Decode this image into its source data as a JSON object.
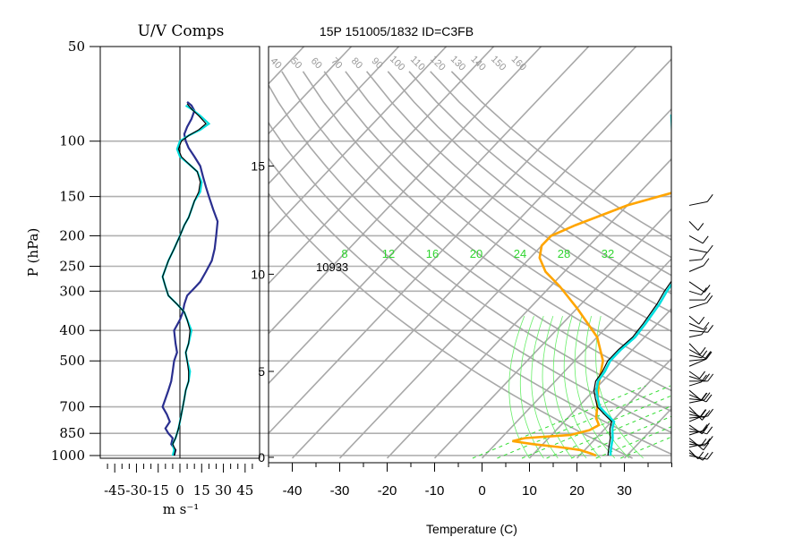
{
  "chart_data": [
    {
      "type": "line",
      "title": "U/V Comps",
      "xlabel": "m s⁻¹",
      "ylabel": "P (hPa)",
      "xlim": [
        -55,
        55
      ],
      "xticks": [
        "-45",
        "-30",
        "-15",
        "0",
        "15",
        "30",
        "45"
      ],
      "yscale": "log",
      "ylim": [
        1020,
        50
      ],
      "yticks": [
        {
          "v": 50,
          "label": "50"
        },
        {
          "v": 100,
          "label": "100"
        },
        {
          "v": 150,
          "label": "150"
        },
        {
          "v": 200,
          "label": "200"
        },
        {
          "v": 250,
          "label": "250"
        },
        {
          "v": 300,
          "label": "300"
        },
        {
          "v": 400,
          "label": "400"
        },
        {
          "v": 500,
          "label": "500"
        },
        {
          "v": 700,
          "label": "700"
        },
        {
          "v": 850,
          "label": "850"
        },
        {
          "v": 1000,
          "label": "1000"
        }
      ],
      "grid": true,
      "series": [
        {
          "name": "",
          "color": "#2a2f8f",
          "x": [
            -4,
            -3,
            -6,
            -5,
            -8,
            -10,
            -7,
            -9,
            -12,
            -10,
            -8,
            -6,
            -5,
            -4,
            -2,
            -3,
            -4,
            0,
            2,
            3,
            5,
            8,
            11,
            14,
            18,
            22,
            24,
            25,
            26,
            23,
            20,
            18,
            16,
            14,
            10,
            6,
            4,
            3,
            5,
            8,
            10,
            8,
            5
          ],
          "p": [
            1000,
            960,
            920,
            880,
            850,
            820,
            780,
            740,
            700,
            660,
            620,
            580,
            540,
            500,
            470,
            440,
            400,
            370,
            350,
            330,
            310,
            300,
            290,
            280,
            260,
            240,
            220,
            200,
            180,
            165,
            150,
            140,
            130,
            120,
            112,
            105,
            100,
            95,
            90,
            85,
            80,
            77,
            75
          ]
        },
        {
          "name": "",
          "color": "#00dddd",
          "x": [
            -5,
            -4,
            -5,
            -3,
            -2,
            -1,
            0,
            1,
            2,
            3,
            4,
            6,
            7,
            5,
            4,
            6,
            8,
            5,
            3,
            -2,
            -8,
            -10,
            -12,
            -8,
            -4,
            0,
            3,
            6,
            8,
            10,
            14,
            15,
            12,
            6,
            0,
            -2,
            0,
            6,
            14,
            20,
            14,
            8,
            4
          ],
          "p": [
            1000,
            960,
            920,
            880,
            850,
            820,
            780,
            740,
            700,
            660,
            620,
            580,
            540,
            500,
            470,
            440,
            400,
            370,
            350,
            330,
            310,
            290,
            270,
            240,
            220,
            200,
            185,
            175,
            165,
            155,
            145,
            135,
            125,
            118,
            112,
            106,
            100,
            96,
            92,
            88,
            83,
            79,
            77
          ]
        },
        {
          "name": "",
          "color": "#000000",
          "x": [
            -4,
            -3,
            -5,
            -3,
            -2,
            -1,
            0,
            1,
            2,
            3,
            4,
            6,
            6,
            5,
            4,
            6,
            7,
            5,
            3,
            -2,
            -8,
            -10,
            -12,
            -8,
            -4,
            0,
            3,
            6,
            8,
            10,
            13,
            14,
            12,
            6,
            1,
            -1,
            1,
            6,
            13,
            18,
            13,
            8,
            5
          ],
          "p": [
            1000,
            960,
            920,
            880,
            850,
            820,
            780,
            740,
            700,
            660,
            620,
            580,
            540,
            500,
            470,
            440,
            400,
            370,
            350,
            330,
            310,
            290,
            270,
            240,
            220,
            200,
            185,
            175,
            165,
            155,
            145,
            135,
            125,
            118,
            112,
            106,
            100,
            96,
            92,
            88,
            83,
            79,
            76
          ]
        }
      ]
    },
    {
      "type": "line",
      "title": "15P 151005/1832 ID=C3FB",
      "xlabel": "Temperature (C)",
      "ylabel": "",
      "xlim": [
        -45,
        40
      ],
      "xticks": [
        "-40",
        "-30",
        "-20",
        "-10",
        "0",
        "10",
        "20",
        "30"
      ],
      "ylim": [
        1020,
        50
      ],
      "height_km_ticks": [
        "0",
        "5",
        "10",
        "15"
      ],
      "tropopause_label": "10933",
      "theta_labels": [
        "40",
        "50",
        "60",
        "70",
        "80",
        "90",
        "100",
        "110",
        "120",
        "130",
        "140",
        "150",
        "160"
      ],
      "mixing_ratio_labels": [
        "8",
        "12",
        "16",
        "20",
        "24",
        "28",
        "32"
      ],
      "grid": true,
      "series": [
        {
          "name": "",
          "color": "#000000",
          "t": [
            26,
            25.5,
            25,
            24.5,
            24,
            23,
            22,
            21,
            20,
            17,
            14,
            12,
            10,
            8.5,
            8,
            7,
            7,
            7.5,
            7,
            6,
            5,
            4.5,
            4.8,
            5.3,
            5,
            4,
            3,
            0,
            -3,
            -7
          ],
          "p": [
            1000,
            980,
            960,
            940,
            920,
            880,
            850,
            820,
            780,
            740,
            700,
            660,
            620,
            580,
            540,
            500,
            460,
            420,
            380,
            330,
            300,
            280,
            260,
            240,
            220,
            180,
            150,
            120,
            100,
            85
          ]
        },
        {
          "name": "",
          "color": "#00e0e0",
          "t": [
            26.5,
            26,
            25.5,
            25,
            24.5,
            23.5,
            22.5,
            21.5,
            20.5,
            17.5,
            14.5,
            12.5,
            10.5,
            9,
            8.5,
            7.5,
            7.5,
            8,
            7.5,
            6.5,
            5.5,
            5
          ],
          "p": [
            1000,
            980,
            960,
            940,
            920,
            880,
            850,
            820,
            780,
            740,
            700,
            660,
            620,
            580,
            540,
            500,
            460,
            420,
            380,
            330,
            300,
            280
          ]
        },
        {
          "name": "",
          "color": "#ffa500",
          "t": [
            23.5,
            22,
            19,
            14,
            8,
            3,
            5,
            14,
            17,
            18,
            16,
            14,
            10,
            6,
            0,
            -10,
            -18,
            -24,
            -28,
            -30,
            -30,
            -27,
            -20,
            -10,
            -2,
            3,
            5,
            7,
            7
          ],
          "p": [
            1000,
            985,
            960,
            940,
            920,
            900,
            880,
            860,
            830,
            800,
            760,
            700,
            600,
            500,
            420,
            340,
            290,
            260,
            235,
            215,
            200,
            185,
            160,
            140,
            120,
            105,
            90,
            80,
            75
          ]
        }
      ]
    }
  ]
}
